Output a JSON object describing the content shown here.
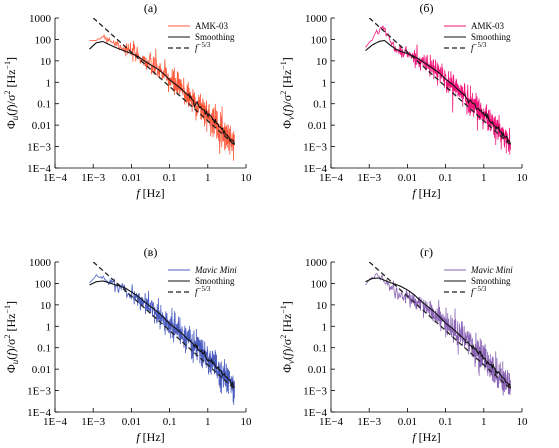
{
  "chart_data": [
    {
      "type": "line",
      "panel_label": "(а)",
      "xlabel": "f [Hz]",
      "ylabel": "Φu(f)/σ² [Hz⁻¹]",
      "xscale": "log",
      "yscale": "log",
      "xlim": [
        0.0001,
        10
      ],
      "ylim": [
        0.0001,
        1000
      ],
      "xticks": [
        "1E−4",
        "1E−3",
        "0.01",
        "0.1",
        "1",
        "10"
      ],
      "yticks": [
        "1E−4",
        "1E−3",
        "0.01",
        "0.1",
        "1",
        "10",
        "100",
        "1000"
      ],
      "grid": false,
      "legend_position": "top-right",
      "series": [
        {
          "name": "AMK-03",
          "role": "raw",
          "color": "#ff5a3c",
          "noise": 1.6,
          "x": [
            0.0008,
            0.0012,
            0.0018,
            0.0025,
            0.0035,
            0.005,
            0.007,
            0.01,
            0.015,
            0.02,
            0.03,
            0.05,
            0.07,
            0.1,
            0.15,
            0.2,
            0.3,
            0.5,
            0.7,
            1,
            1.5,
            2,
            3,
            4,
            5
          ],
          "y": [
            55,
            100,
            140,
            110,
            70,
            55,
            35,
            25,
            18,
            12,
            7,
            4,
            2.5,
            1.2,
            0.7,
            0.5,
            0.25,
            0.1,
            0.06,
            0.03,
            0.015,
            0.008,
            0.004,
            0.002,
            0.0012
          ]
        },
        {
          "name": "Smoothing",
          "role": "smooth",
          "color": "#111111",
          "x": [
            0.0008,
            0.0012,
            0.0018,
            0.0025,
            0.0035,
            0.005,
            0.007,
            0.01,
            0.015,
            0.02,
            0.03,
            0.05,
            0.07,
            0.1,
            0.15,
            0.2,
            0.3,
            0.5,
            0.7,
            1,
            1.5,
            2,
            3,
            4,
            5
          ],
          "y": [
            35,
            70,
            80,
            60,
            45,
            35,
            28,
            22,
            16,
            11,
            7,
            4,
            2.5,
            1.3,
            0.75,
            0.5,
            0.25,
            0.11,
            0.06,
            0.032,
            0.016,
            0.009,
            0.004,
            0.0025,
            0.0015
          ]
        },
        {
          "name": "f^−5/3",
          "role": "ref",
          "color": "#222222",
          "x": [
            0.0007,
            5
          ],
          "y": [
            1800,
            0.0012
          ]
        }
      ]
    },
    {
      "type": "line",
      "panel_label": "(б)",
      "xlabel": "f [Hz]",
      "ylabel": "Φv(f)/σ² [Hz⁻¹]",
      "xscale": "log",
      "yscale": "log",
      "xlim": [
        0.0001,
        10
      ],
      "ylim": [
        0.0001,
        1000
      ],
      "xticks": [
        "1E−4",
        "1E−3",
        "0.01",
        "0.1",
        "1",
        "10"
      ],
      "yticks": [
        "1E−4",
        "1E−3",
        "0.01",
        "0.1",
        "1",
        "10",
        "100",
        "1000"
      ],
      "grid": false,
      "legend_position": "top-right",
      "series": [
        {
          "name": "AMK-03",
          "role": "raw",
          "color": "#f0157a",
          "noise": 1.5,
          "x": [
            0.0008,
            0.0012,
            0.0018,
            0.0025,
            0.0035,
            0.005,
            0.007,
            0.01,
            0.015,
            0.02,
            0.03,
            0.05,
            0.07,
            0.1,
            0.15,
            0.2,
            0.3,
            0.5,
            0.7,
            1,
            1.5,
            2,
            3,
            4,
            5
          ],
          "y": [
            45,
            120,
            250,
            380,
            80,
            35,
            25,
            22,
            14,
            12,
            7,
            4,
            2.6,
            1.3,
            0.8,
            0.5,
            0.25,
            0.1,
            0.06,
            0.03,
            0.015,
            0.008,
            0.004,
            0.002,
            0.0013
          ]
        },
        {
          "name": "Smoothing",
          "role": "smooth",
          "color": "#111111",
          "x": [
            0.0008,
            0.0012,
            0.0018,
            0.0025,
            0.0035,
            0.005,
            0.007,
            0.01,
            0.015,
            0.02,
            0.03,
            0.05,
            0.07,
            0.1,
            0.15,
            0.2,
            0.3,
            0.5,
            0.7,
            1,
            1.5,
            2,
            3,
            4,
            5
          ],
          "y": [
            30,
            55,
            80,
            90,
            55,
            35,
            27,
            22,
            16,
            12,
            7.5,
            4,
            2.6,
            1.4,
            0.8,
            0.5,
            0.26,
            0.11,
            0.06,
            0.032,
            0.016,
            0.009,
            0.0045,
            0.0025,
            0.0015
          ]
        },
        {
          "name": "f^−5/3",
          "role": "ref",
          "color": "#222222",
          "x": [
            0.0007,
            5
          ],
          "y": [
            1800,
            0.0012
          ]
        }
      ]
    },
    {
      "type": "line",
      "panel_label": "(в)",
      "xlabel": "f [Hz]",
      "ylabel": "Φu(f)/σ² [Hz⁻¹]",
      "xscale": "log",
      "yscale": "log",
      "xlim": [
        0.0001,
        10
      ],
      "ylim": [
        0.0001,
        1000
      ],
      "xticks": [
        "1E−4",
        "1E−3",
        "0.01",
        "0.1",
        "1",
        "10"
      ],
      "yticks": [
        "1E−4",
        "1E−3",
        "0.01",
        "0.1",
        "1",
        "10",
        "100",
        "1000"
      ],
      "grid": false,
      "legend_position": "top-right",
      "series": [
        {
          "name": "Mavic Mini",
          "role": "raw",
          "color": "#4b5cbf",
          "noise": 1.6,
          "x": [
            0.0008,
            0.0012,
            0.0018,
            0.0025,
            0.0035,
            0.005,
            0.007,
            0.01,
            0.015,
            0.02,
            0.03,
            0.05,
            0.07,
            0.1,
            0.15,
            0.2,
            0.3,
            0.5,
            0.7,
            1,
            1.5,
            2,
            3,
            4,
            5
          ],
          "y": [
            120,
            200,
            190,
            120,
            90,
            70,
            45,
            28,
            20,
            14,
            8,
            4,
            2.4,
            1.2,
            0.7,
            0.45,
            0.25,
            0.1,
            0.06,
            0.03,
            0.015,
            0.008,
            0.004,
            0.002,
            0.0012
          ]
        },
        {
          "name": "Smoothing",
          "role": "smooth",
          "color": "#111111",
          "x": [
            0.0008,
            0.0012,
            0.0018,
            0.0025,
            0.0035,
            0.005,
            0.007,
            0.01,
            0.015,
            0.02,
            0.03,
            0.05,
            0.07,
            0.1,
            0.15,
            0.2,
            0.3,
            0.5,
            0.7,
            1,
            1.5,
            2,
            3,
            4,
            5
          ],
          "y": [
            85,
            120,
            130,
            110,
            90,
            75,
            60,
            40,
            25,
            16,
            9,
            4.5,
            2.6,
            1.3,
            0.75,
            0.5,
            0.25,
            0.11,
            0.06,
            0.032,
            0.016,
            0.009,
            0.0045,
            0.0025,
            0.0015
          ]
        },
        {
          "name": "f^−5/3",
          "role": "ref",
          "color": "#222222",
          "x": [
            0.0007,
            5
          ],
          "y": [
            1800,
            0.0012
          ]
        }
      ]
    },
    {
      "type": "line",
      "panel_label": "(г)",
      "xlabel": "f [Hz]",
      "ylabel": "Φv(f)/σ² [Hz⁻¹]",
      "xscale": "log",
      "yscale": "log",
      "xlim": [
        0.0001,
        10
      ],
      "ylim": [
        0.0001,
        1000
      ],
      "xticks": [
        "1E−4",
        "1E−3",
        "0.01",
        "0.1",
        "1",
        "10"
      ],
      "yticks": [
        "1E−4",
        "1E−3",
        "0.01",
        "0.1",
        "1",
        "10",
        "100",
        "1000"
      ],
      "grid": false,
      "legend_position": "top-right",
      "series": [
        {
          "name": "Mavic Mini",
          "role": "raw",
          "color": "#8a64b4",
          "noise": 1.6,
          "x": [
            0.0008,
            0.0012,
            0.0018,
            0.0025,
            0.0035,
            0.005,
            0.007,
            0.01,
            0.015,
            0.02,
            0.03,
            0.05,
            0.07,
            0.1,
            0.15,
            0.2,
            0.3,
            0.5,
            0.7,
            1,
            1.5,
            2,
            3,
            4,
            5
          ],
          "y": [
            90,
            200,
            300,
            150,
            70,
            40,
            25,
            20,
            14,
            12,
            7,
            4,
            2.5,
            1.3,
            0.75,
            0.5,
            0.25,
            0.1,
            0.06,
            0.03,
            0.015,
            0.008,
            0.004,
            0.002,
            0.0012
          ]
        },
        {
          "name": "Smoothing",
          "role": "smooth",
          "color": "#111111",
          "x": [
            0.0008,
            0.0012,
            0.0018,
            0.0025,
            0.0035,
            0.005,
            0.007,
            0.01,
            0.015,
            0.02,
            0.03,
            0.05,
            0.07,
            0.1,
            0.15,
            0.2,
            0.3,
            0.5,
            0.7,
            1,
            1.5,
            2,
            3,
            4,
            5
          ],
          "y": [
            120,
            170,
            180,
            140,
            110,
            90,
            70,
            50,
            30,
            18,
            10,
            4.8,
            2.7,
            1.4,
            0.8,
            0.5,
            0.26,
            0.11,
            0.06,
            0.032,
            0.016,
            0.009,
            0.0045,
            0.0025,
            0.0015
          ]
        },
        {
          "name": "f^−5/3",
          "role": "ref",
          "color": "#222222",
          "x": [
            0.0007,
            5
          ],
          "y": [
            1800,
            0.0012
          ]
        }
      ]
    }
  ]
}
